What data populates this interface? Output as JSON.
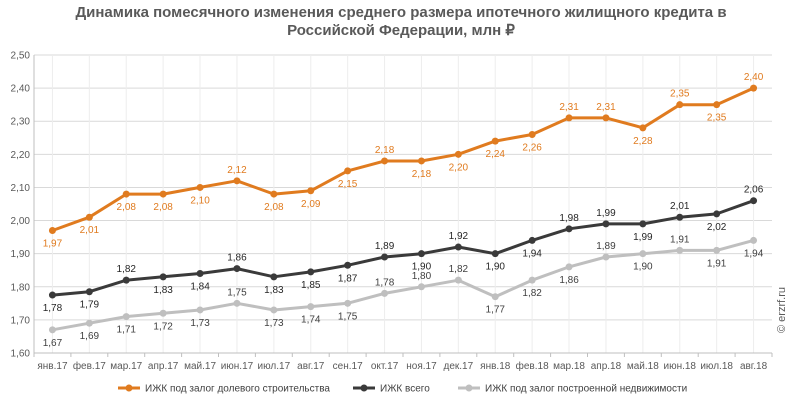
{
  "title": {
    "line1": "Динамика помесячного изменения среднего размера ипотечного жилищного кредита в",
    "line2": "Российской Федерации, млн ₽"
  },
  "watermark": "© erzrf.ru",
  "chart_data": {
    "type": "line",
    "title": "Динамика помесячного изменения среднего размера ипотечного жилищного кредита в Российской Федерации, млн ₽",
    "categories": [
      "янв.17",
      "фев.17",
      "мар.17",
      "апр.17",
      "май.17",
      "июн.17",
      "июл.17",
      "авг.17",
      "сен.17",
      "окт.17",
      "ноя.17",
      "дек.17",
      "янв.18",
      "фев.18",
      "мар.18",
      "апр.18",
      "май.18",
      "июн.18",
      "июл.18",
      "авг.18"
    ],
    "ylim": [
      1.6,
      2.5
    ],
    "yticks": [
      "1,60",
      "1,70",
      "1,80",
      "1,90",
      "2,00",
      "2,10",
      "2,20",
      "2,30",
      "2,40",
      "2,50"
    ],
    "ytick_values": [
      1.6,
      1.7,
      1.8,
      1.9,
      2.0,
      2.1,
      2.2,
      2.3,
      2.4,
      2.5
    ],
    "grid": "horizontal",
    "legend_position": "bottom",
    "series": [
      {
        "name": "ИЖК под залог долевого строительства",
        "color": "#E07B1F",
        "label_color": "#E07B1F",
        "label_position": "below",
        "values": [
          1.97,
          2.01,
          2.08,
          2.08,
          2.1,
          2.12,
          2.08,
          2.09,
          2.15,
          2.18,
          2.18,
          2.2,
          2.24,
          2.26,
          2.31,
          2.31,
          2.28,
          2.35,
          2.35,
          2.4
        ],
        "labels": [
          "1,97",
          "2,01",
          "2,08",
          "2,08",
          "2,10",
          "2,12",
          "2,08",
          "2,09",
          "2,15",
          "2,18",
          "2,18",
          "2,20",
          "2,24",
          "2,26",
          "2,31",
          "2,31",
          "2,28",
          "2,35",
          "2,35",
          "2,40"
        ]
      },
      {
        "name": "ИЖК всего",
        "color": "#3A3A3A",
        "label_color": "#262626",
        "label_position": "below",
        "values": [
          1.775,
          1.785,
          1.82,
          1.83,
          1.84,
          1.855,
          1.83,
          1.845,
          1.865,
          1.89,
          1.9,
          1.92,
          1.9,
          1.94,
          1.975,
          1.99,
          1.99,
          2.01,
          2.02,
          2.06
        ],
        "labels": [
          "1,78",
          "1,79",
          "1,82",
          "1,83",
          "1,84",
          "1,86",
          "1,83",
          "1,85",
          "1,87",
          "1,89",
          "1,90",
          "1,92",
          "1,90",
          "1,94",
          "1,98",
          "1,99",
          "1,99",
          "2,01",
          "2,02",
          "2,06"
        ]
      },
      {
        "name": "ИЖК под залог построенной недвижимости",
        "color": "#BFBFBF",
        "label_color": "#404040",
        "label_position": "below",
        "values": [
          1.67,
          1.69,
          1.71,
          1.72,
          1.73,
          1.75,
          1.73,
          1.74,
          1.75,
          1.78,
          1.8,
          1.82,
          1.77,
          1.82,
          1.86,
          1.89,
          1.9,
          1.91,
          1.91,
          1.94
        ],
        "labels": [
          "1,67",
          "1,69",
          "1,71",
          "1,72",
          "1,73",
          "1,75",
          "1,73",
          "1,74",
          "1,75",
          "1,78",
          "1,80",
          "1,82",
          "1,77",
          "1,82",
          "1,86",
          "1,89",
          "1,90",
          "1,91",
          "1,91",
          "1,94"
        ]
      }
    ]
  }
}
